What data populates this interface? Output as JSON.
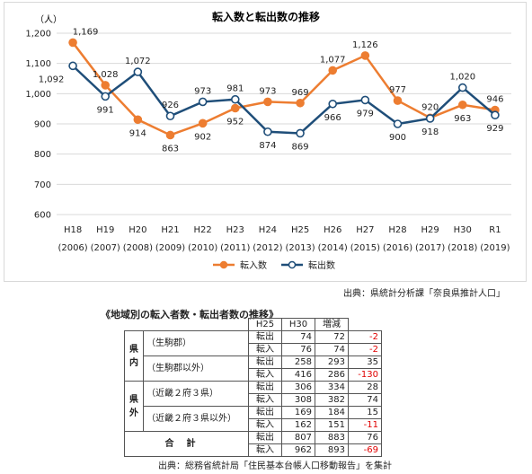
{
  "chart_data": {
    "type": "line",
    "title": "転入数と転出数の推移",
    "unit": "（人）",
    "categories": [
      "H18",
      "H19",
      "H20",
      "H21",
      "H22",
      "H23",
      "H24",
      "H25",
      "H26",
      "H27",
      "H28",
      "H29",
      "H30",
      "R1"
    ],
    "years": [
      "(2006)",
      "(2007)",
      "(2008)",
      "(2009)",
      "(2010)",
      "(2011)",
      "(2012)",
      "(2013)",
      "(2014)",
      "(2015)",
      "(2016)",
      "(2017)",
      "(2018)",
      "(2019)"
    ],
    "ylim": [
      600,
      1200
    ],
    "yticks": [
      "600",
      "700",
      "800",
      "900",
      "1,000",
      "1,100",
      "1,200"
    ],
    "grid": true,
    "legend_position": "bottom",
    "series": [
      {
        "name": "転入数",
        "color": "#ed7d31",
        "marker": "filled",
        "values": [
          1169,
          1028,
          914,
          863,
          902,
          952,
          973,
          969,
          1077,
          1126,
          977,
          920,
          963,
          946
        ],
        "labels": [
          "1,169",
          "1,028",
          "914",
          "863",
          "902",
          "952",
          "973",
          "969",
          "1,077",
          "1,126",
          "977",
          "920",
          "963",
          "946"
        ]
      },
      {
        "name": "転出数",
        "color": "#1f4e79",
        "marker": "open",
        "values": [
          1092,
          991,
          1072,
          926,
          973,
          981,
          874,
          869,
          966,
          979,
          900,
          918,
          1020,
          929
        ],
        "labels": [
          "1,092",
          "991",
          "1,072",
          "926",
          "973",
          "981",
          "874",
          "869",
          "966",
          "979",
          "900",
          "918",
          "1,020",
          "929"
        ]
      }
    ]
  },
  "source_chart": "出典：県統計分析課「奈良県推計人口」",
  "table": {
    "title": "《地域別の転入者数・転出者数の推移》",
    "headers": [
      "H25",
      "H30",
      "増減"
    ],
    "groups": [
      {
        "label": "県内",
        "rows": [
          {
            "area": "（生駒郡）",
            "out": [
              "74",
              "72",
              "-2"
            ],
            "in": [
              "76",
              "74",
              "-2"
            ]
          },
          {
            "area": "（生駒郡以外）",
            "out": [
              "258",
              "293",
              "35"
            ],
            "in": [
              "416",
              "286",
              "-130"
            ]
          }
        ]
      },
      {
        "label": "県外",
        "rows": [
          {
            "area": "（近畿２府３県）",
            "out": [
              "306",
              "334",
              "28"
            ],
            "in": [
              "308",
              "382",
              "74"
            ]
          },
          {
            "area": "（近畿２府３県以外）",
            "out": [
              "169",
              "184",
              "15"
            ],
            "in": [
              "162",
              "151",
              "-11"
            ]
          }
        ]
      }
    ],
    "total_label": "合計",
    "total": {
      "out": [
        "807",
        "883",
        "76"
      ],
      "in": [
        "962",
        "893",
        "-69"
      ]
    },
    "out_label": "転出",
    "in_label": "転入"
  },
  "source_table": "出典：総務省統計局「住民基本台帳人口移動報告」を集計"
}
